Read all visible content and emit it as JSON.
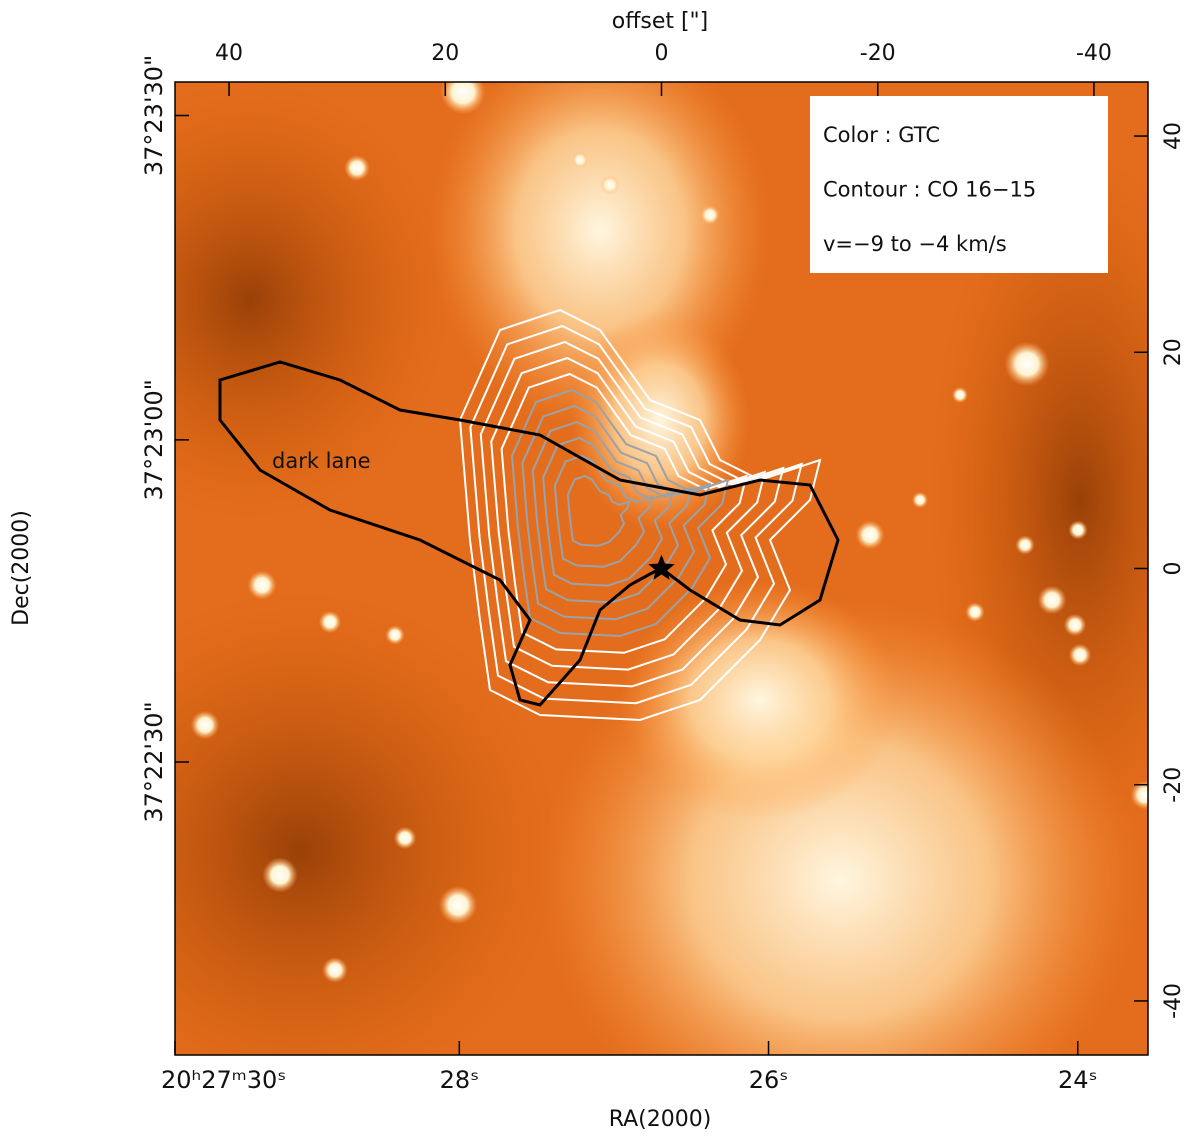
{
  "chart_data": {
    "type": "image",
    "x_label_top": "offset [\"]",
    "x_label": "RA(2000)",
    "y_label": "Dec(2000)",
    "xlim": [
      45,
      -45
    ],
    "ylim": [
      -45,
      45
    ],
    "xticks": [
      40,
      20,
      0,
      -20,
      -40
    ],
    "yticks": [
      40,
      20,
      0,
      -20,
      -40
    ],
    "ra_ticks": [
      {
        "value": 45,
        "label": "20ʰ27ᵐ30ˢ"
      },
      {
        "value": 18.7,
        "label": "28ˢ"
      },
      {
        "value": -9.9,
        "label": "26ˢ"
      },
      {
        "value": -38.5,
        "label": "24ˢ"
      }
    ],
    "dec_ticks": [
      {
        "value": 41.9,
        "label": "37°23'30\""
      },
      {
        "value": 11.9,
        "label": "37°23'00\""
      },
      {
        "value": -17.9,
        "label": "37°22'30\""
      }
    ],
    "legend": [
      "Color : GTC",
      "Contour : CO 16−15",
      "v=−9 to −4 km/s"
    ],
    "annotation": "dark lane",
    "source_position": [
      0,
      0
    ]
  }
}
